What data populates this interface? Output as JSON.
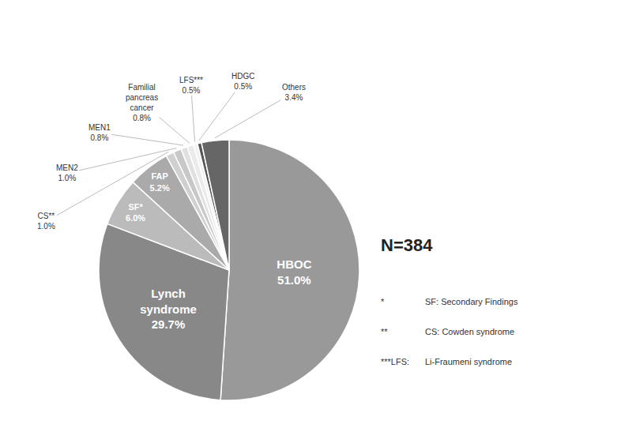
{
  "chart_data": {
    "type": "pie",
    "categories": [
      "HBOC",
      "Lynch\nsyndrome",
      "SF*",
      "FAP",
      "CS**",
      "MEN2",
      "MEN1",
      "Familial\npancreas\ncancer",
      "LFS***",
      "HDGC",
      "Others"
    ],
    "values": [
      51.0,
      29.7,
      6.0,
      5.2,
      1.0,
      1.0,
      0.8,
      0.8,
      0.5,
      0.5,
      3.4
    ],
    "value_labels": [
      "51.0%",
      "29.7%",
      "6.0%",
      "5.2%",
      "1.0%",
      "1.0%",
      "0.8%",
      "0.8%",
      "0.5%",
      "0.5%",
      "3.4%"
    ],
    "colors": [
      "#999999",
      "#888888",
      "#bbbbbb",
      "#aaaaaa",
      "#d0d0d0",
      "#c8c8c8",
      "#e0e0e0",
      "#ebebeb",
      "#f2f2f2",
      "#555555",
      "#666666"
    ],
    "data_labels": true,
    "annotations": [
      "N=384"
    ],
    "footnotes": [
      [
        "*",
        "SF: Secondary Findings"
      ],
      [
        "**",
        "CS: Cowden syndrome"
      ],
      [
        "***LFS:",
        "Li-Fraumeni syndrome"
      ]
    ]
  }
}
